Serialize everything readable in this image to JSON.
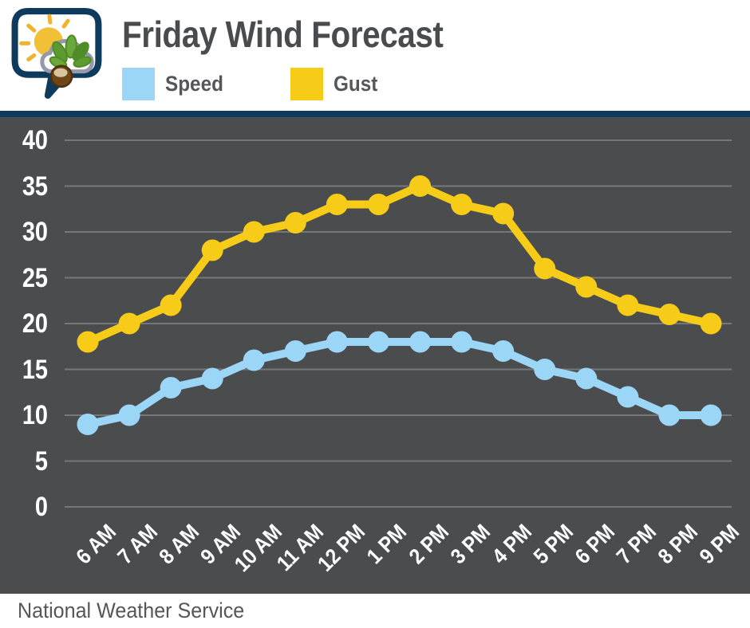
{
  "header": {
    "title": "Friday Wind Forecast",
    "logo_icon": "speech-bubble-sun-cloud-buckeye"
  },
  "footer": {
    "source": "National Weather Service"
  },
  "colors": {
    "background": "#ffffff",
    "chart_background": "#4b4c4e",
    "divider_navy": "#0e3a5d",
    "gridline": "#76777a",
    "axis_text": "#ffffff",
    "title_text": "#4a4b4d",
    "legend_text": "#55565a",
    "footer_text": "#55565a",
    "speed_blue": "#9bd6f7",
    "gust_yellow": "#f7cc18"
  },
  "chart_data": {
    "type": "line",
    "title": "Friday Wind Forecast",
    "categories": [
      "6 AM",
      "7 AM",
      "8 AM",
      "9 AM",
      "10 AM",
      "11 AM",
      "12 PM",
      "1 PM",
      "2 PM",
      "3 PM",
      "4 PM",
      "5 PM",
      "6 PM",
      "7 PM",
      "8 PM",
      "9 PM"
    ],
    "series": [
      {
        "name": "Speed",
        "color": "#9bd6f7",
        "values": [
          9,
          10,
          13,
          14,
          16,
          17,
          18,
          18,
          18,
          18,
          17,
          15,
          14,
          12,
          10,
          10
        ]
      },
      {
        "name": "Gust",
        "color": "#f7cc18",
        "values": [
          18,
          20,
          22,
          28,
          30,
          31,
          33,
          33,
          35,
          33,
          32,
          26,
          24,
          22,
          21,
          20
        ]
      }
    ],
    "xlabel": "",
    "ylabel": "",
    "ylim": [
      0,
      40
    ],
    "yticks": [
      0,
      5,
      10,
      15,
      20,
      25,
      30,
      35,
      40
    ],
    "x_tick_rotation": 45,
    "grid": "horizontal",
    "legend_position": "top-left",
    "marker": "circle"
  }
}
